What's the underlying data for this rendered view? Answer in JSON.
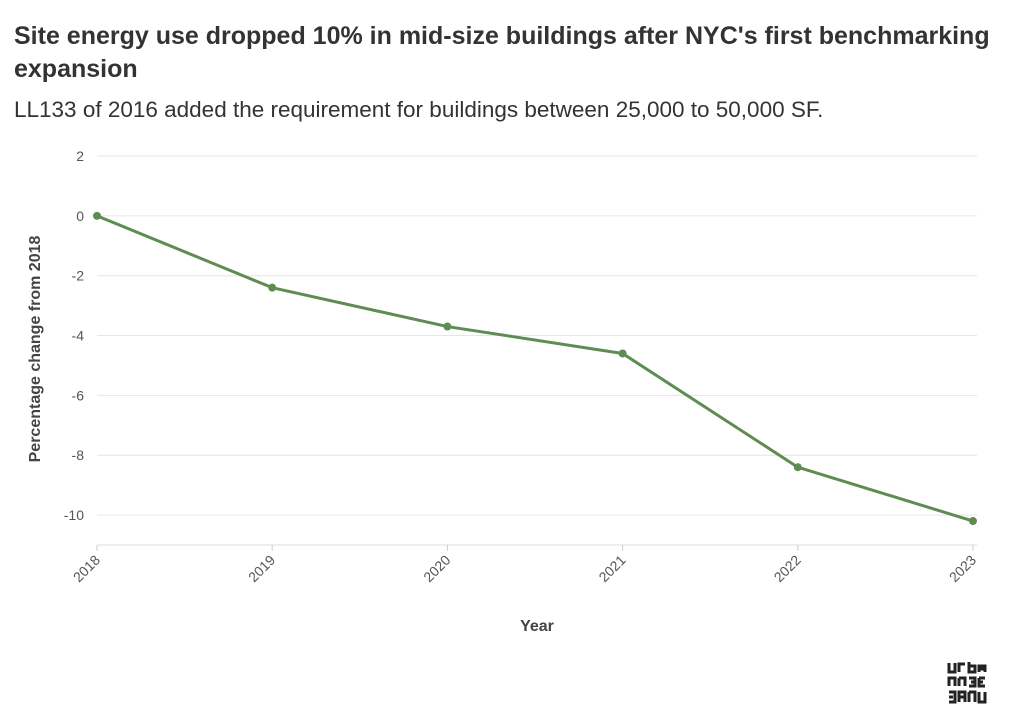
{
  "chart_data": {
    "type": "line",
    "title": "Site energy use dropped 10% in mid-size buildings after NYC's first benchmarking expansion",
    "subtitle": "LL133 of 2016 added the requirement for buildings between 25,000 to 50,000 SF.",
    "xlabel": "Year",
    "ylabel": "Percentage change from 2018",
    "x": [
      "2018",
      "2019",
      "2020",
      "2021",
      "2022",
      "2023"
    ],
    "series": [
      {
        "values": [
          0,
          -2.4,
          -3.7,
          -4.6,
          -8.4,
          -10.2
        ]
      }
    ],
    "ylim": [
      -11,
      2
    ],
    "yticks": [
      2,
      0,
      -2,
      -4,
      -6,
      -8,
      -10
    ],
    "grid": true,
    "line_color": "#5e8c53"
  },
  "logo": {
    "text": "urban green"
  }
}
